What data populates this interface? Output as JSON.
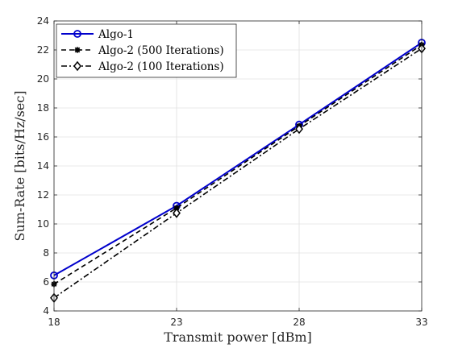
{
  "chart_data": {
    "type": "line",
    "xlabel": "Transmit power [dBm]",
    "ylabel": "Sum-Rate [bits/Hz/sec]",
    "xlim": [
      18,
      33
    ],
    "ylim": [
      4,
      24
    ],
    "xticks": [
      18,
      23,
      28,
      33
    ],
    "yticks": [
      4,
      6,
      8,
      10,
      12,
      14,
      16,
      18,
      20,
      22,
      24
    ],
    "grid": true,
    "legend_position": "top-left",
    "x": [
      18,
      23,
      28,
      33
    ],
    "series": [
      {
        "name": "Algo-1",
        "values": [
          6.45,
          11.25,
          16.85,
          22.5
        ],
        "color": "#0000cc",
        "dash": "solid",
        "marker": "circle"
      },
      {
        "name": "Algo-2 (500 Iterations)",
        "values": [
          5.85,
          11.1,
          16.75,
          22.35
        ],
        "color": "#000000",
        "dash": "dashed",
        "marker": "asterisk"
      },
      {
        "name": "Algo-2 (100 Iterations)",
        "values": [
          4.9,
          10.75,
          16.55,
          22.1
        ],
        "color": "#000000",
        "dash": "dashdot",
        "marker": "diamond"
      }
    ]
  }
}
